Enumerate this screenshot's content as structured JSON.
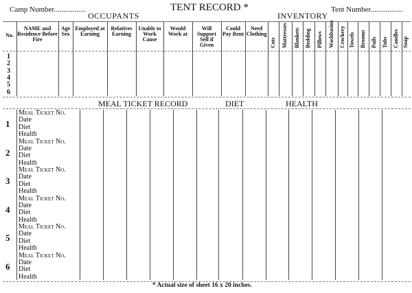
{
  "header": {
    "camp_number_label": "Camp Number.................",
    "title": "TENT RECORD *",
    "tent_number_label": "Tent Number.................",
    "occupants_label": "OCCUPANTS",
    "inventory_label": "INVENTORY"
  },
  "occupants_columns": [
    "No.",
    "NAME and Residence Before Fire",
    "Age Sex",
    "Employed at Earning",
    "Relatives Earning",
    "Unable to Work Cause",
    "Would Work at",
    "Will Support Self if Given",
    "Could Pay Rent",
    "Need Clothing"
  ],
  "inventory_columns": [
    "Cots",
    "Mattresses",
    "Blankets",
    "Bedding",
    "Pillows",
    "Washbasins",
    "Crockery",
    "Towels",
    "Brooms",
    "Pails",
    "Tubs",
    "Candles",
    "Soap"
  ],
  "row_numbers": [
    "1",
    "2",
    "3",
    "4",
    "5",
    "6"
  ],
  "meal_section": {
    "meal_ticket_record_label": "MEAL TICKET RECORD",
    "diet_label": "DIET",
    "health_label": "HEALTH",
    "group_lines": [
      "Meal Ticket No.",
      "Date",
      "Diet",
      "Health"
    ]
  },
  "footnote": "* Actual size of sheet 16 x 20 inches."
}
